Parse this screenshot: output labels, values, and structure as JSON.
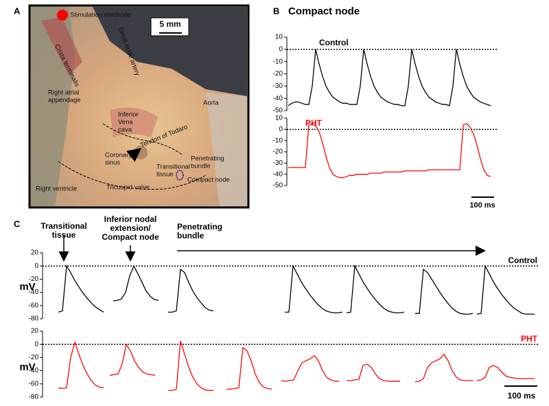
{
  "panel_a": {
    "label": "A",
    "scale_bar": "5 mm",
    "labels": [
      "Stimulation electrode",
      "Sinus node artery",
      "Crista terminalis",
      [
        "Right atrial",
        "appendage"
      ],
      "Aorta",
      [
        "Inferior",
        "Vena",
        "cava"
      ],
      "Tendon of Todaro",
      [
        "Coronary",
        "sinus"
      ],
      [
        "Transitional",
        "tissue"
      ],
      [
        "Penetrating",
        "bundle"
      ],
      "Compact node",
      "Right ventricle",
      "Tricuspid valve"
    ]
  },
  "panel_b": {
    "label": "B",
    "title": "Compact node",
    "scale_bar": "100 ms"
  },
  "panel_c": {
    "label": "C",
    "scale_bar": "100 ms",
    "y_label": "mV",
    "annotations": [
      [
        "Transitional",
        "tissue"
      ],
      [
        "Inferior nodal",
        "extension/",
        "Compact node"
      ],
      [
        "Penetrating",
        "bundle"
      ]
    ]
  },
  "chart_data": [
    {
      "type": "line",
      "label": "Control",
      "color": "#000000",
      "ylim": [
        -50,
        10
      ],
      "yticks": [
        10,
        0,
        -10,
        -20,
        -30,
        -40,
        -50
      ],
      "zero_line": true,
      "values": [
        -46,
        -44,
        -43,
        -43,
        -44,
        -45,
        -45,
        -30,
        0,
        -12,
        -22,
        -30,
        -35,
        -39,
        -41,
        -43,
        -44,
        -44,
        -45,
        -45,
        -45,
        -30,
        0,
        -12,
        -22,
        -30,
        -35,
        -39,
        -41,
        -43,
        -44,
        -45,
        -45,
        -46,
        -46,
        -30,
        0,
        -12,
        -22,
        -30,
        -35,
        -39,
        -41,
        -43,
        -44,
        -45,
        -45,
        -46,
        -30,
        0,
        -12,
        -22,
        -30,
        -35,
        -39,
        -41,
        -43,
        -44,
        -45,
        -46
      ]
    },
    {
      "type": "line",
      "label": "PHT",
      "color": "#ff0000",
      "ylim": [
        -50,
        10
      ],
      "yticks": [
        10,
        0,
        -10,
        -20,
        -30,
        -40,
        -50
      ],
      "zero_line": true,
      "values": [
        -34,
        -34,
        -34,
        -34,
        -34,
        -34,
        4,
        5,
        3,
        -2,
        -12,
        -24,
        -34,
        -40,
        -42,
        -43,
        -43,
        -42,
        -41,
        -41,
        -40,
        -40,
        -40,
        -40,
        -39,
        -39,
        -39,
        -39,
        -38,
        -38,
        -38,
        -38,
        -38,
        -38,
        -37,
        -37,
        -37,
        -37,
        -37,
        -37,
        -37,
        -36,
        -36,
        -36,
        -36,
        -36,
        -36,
        -36,
        -36,
        -36,
        -36,
        4,
        5,
        2,
        -4,
        -14,
        -26,
        -36,
        -41,
        -42
      ]
    },
    {
      "type": "segmented_line",
      "label": "Control",
      "color": "#000000",
      "ylim": [
        -80,
        20
      ],
      "yticks": [
        20,
        0,
        -20,
        -40,
        -60,
        -80
      ],
      "zero_line": true,
      "segments": [
        [
          -70,
          -68,
          0,
          -10,
          -22,
          -32,
          -41,
          -49,
          -56,
          -62,
          -66,
          -70
        ],
        [
          -53,
          -52,
          -50,
          -40,
          -15,
          0,
          -12,
          -25,
          -38,
          -46,
          -51,
          -52
        ],
        [
          -70,
          -70,
          -68,
          -5,
          -10,
          -25,
          -38,
          -48,
          -56,
          -63,
          -67,
          -68
        ],
        [
          -70,
          -70,
          0,
          -12,
          -24,
          -34,
          -43,
          -51,
          -58,
          -64,
          -68,
          -70,
          -71,
          -71,
          -70
        ],
        [
          -71,
          -70,
          0,
          -12,
          -24,
          -34,
          -43,
          -51,
          -58,
          -64,
          -68,
          -70,
          -71,
          -71,
          -70
        ],
        [
          -72,
          -72,
          -5,
          -10,
          -20,
          -30,
          -40,
          -49,
          -57,
          -64,
          -69,
          -72,
          -73,
          -73,
          -72
        ],
        [
          -73,
          -72,
          0,
          -12,
          -24,
          -34,
          -43,
          -51,
          -58,
          -64,
          -68,
          -72,
          -73,
          -73,
          -73
        ]
      ]
    },
    {
      "type": "segmented_line",
      "label": "PHT",
      "color": "#ff0000",
      "ylim": [
        -80,
        20
      ],
      "yticks": [
        20,
        0,
        -20,
        -40,
        -60,
        -80
      ],
      "zero_line": true,
      "segments": [
        [
          -66,
          -67,
          -66,
          -20,
          3,
          -15,
          -32,
          -45,
          -55,
          -62,
          -65,
          -66
        ],
        [
          -47,
          -46,
          -45,
          -30,
          0,
          -10,
          -25,
          -35,
          -42,
          -45,
          -46,
          -47
        ],
        [
          -70,
          -70,
          -68,
          5,
          -15,
          -35,
          -50,
          -60,
          -66,
          -69,
          -70,
          -70
        ],
        [
          -68,
          -68,
          -67,
          -66,
          -5,
          -10,
          -25,
          -45,
          -58,
          -65,
          -67,
          -68
        ],
        [
          -55,
          -56,
          -55,
          -54,
          -40,
          -28,
          -25,
          -22,
          -17,
          -25,
          -40,
          -50,
          -54,
          -56,
          -56
        ],
        [
          -55,
          -55,
          -54,
          -53,
          -32,
          -30,
          -35,
          -45,
          -52,
          -55,
          -56,
          -56,
          -56,
          -56
        ],
        [
          -57,
          -56,
          -52,
          -35,
          -28,
          -25,
          -22,
          -15,
          -25,
          -40,
          -50,
          -54,
          -55,
          -55,
          -55
        ],
        [
          -55,
          -54,
          -50,
          -35,
          -32,
          -35,
          -42,
          -48,
          -50,
          -51,
          -52,
          -52,
          -52,
          -52,
          -52
        ]
      ]
    }
  ]
}
